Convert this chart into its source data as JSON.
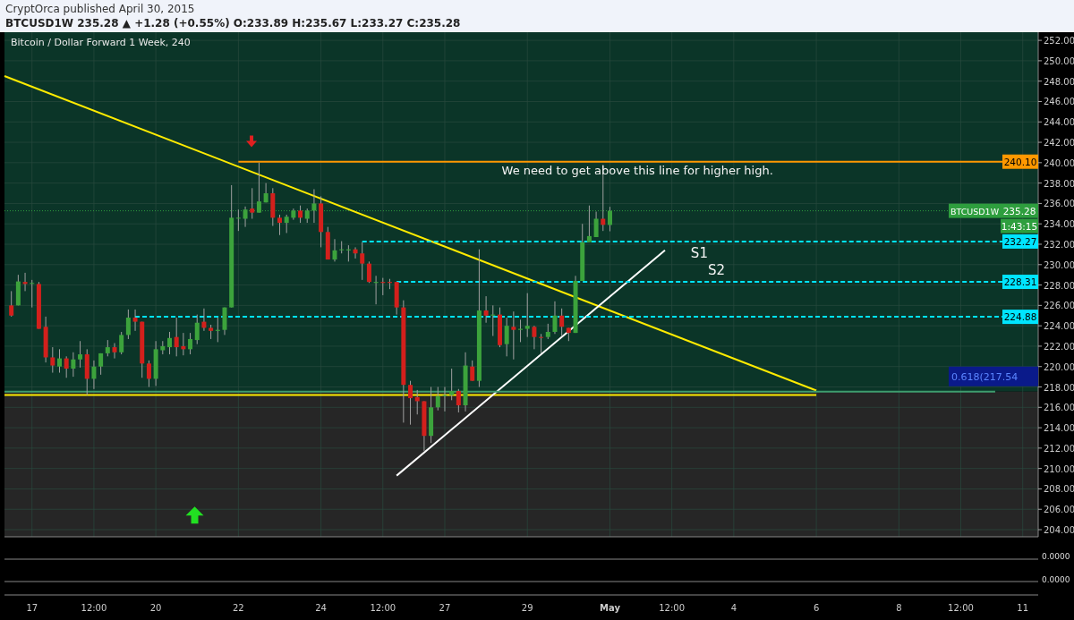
{
  "chart_data": {
    "type": "candlestick",
    "title": "Bitcoin / Dollar Forward 1 Week, 240",
    "subtitle": "BTCUSD1W 235.28 ▲ +1.28 (+0.55%) O:233.89 H:235.67 L:233.27 C:235.28",
    "x": [
      "2015-04-16T12:00",
      "2015-04-16T16:00",
      "2015-04-16T20:00",
      "2015-04-17T00:00",
      "2015-04-17T04:00",
      "2015-04-17T08:00",
      "2015-04-17T12:00",
      "2015-04-17T16:00",
      "2015-04-17T20:00",
      "2015-04-18T00:00",
      "2015-04-18T04:00",
      "2015-04-18T08:00",
      "2015-04-18T12:00",
      "2015-04-18T16:00",
      "2015-04-18T20:00",
      "2015-04-19T00:00",
      "2015-04-19T04:00",
      "2015-04-19T08:00",
      "2015-04-19T12:00",
      "2015-04-19T16:00",
      "2015-04-19T20:00",
      "2015-04-20T00:00",
      "2015-04-20T04:00",
      "2015-04-20T08:00",
      "2015-04-20T12:00",
      "2015-04-20T16:00",
      "2015-04-20T20:00",
      "2015-04-21T00:00",
      "2015-04-21T04:00",
      "2015-04-21T08:00",
      "2015-04-21T12:00",
      "2015-04-21T16:00",
      "2015-04-21T20:00",
      "2015-04-22T00:00",
      "2015-04-22T04:00",
      "2015-04-22T08:00",
      "2015-04-22T12:00",
      "2015-04-22T16:00",
      "2015-04-22T20:00",
      "2015-04-23T00:00",
      "2015-04-23T04:00",
      "2015-04-23T08:00",
      "2015-04-23T12:00",
      "2015-04-23T16:00",
      "2015-04-23T20:00",
      "2015-04-24T00:00",
      "2015-04-24T04:00",
      "2015-04-24T08:00",
      "2015-04-24T12:00",
      "2015-04-24T16:00",
      "2015-04-24T20:00",
      "2015-04-25T00:00",
      "2015-04-25T04:00",
      "2015-04-25T08:00",
      "2015-04-25T12:00",
      "2015-04-25T16:00",
      "2015-04-25T20:00",
      "2015-04-26T00:00",
      "2015-04-26T04:00",
      "2015-04-26T08:00",
      "2015-04-26T12:00",
      "2015-04-26T16:00",
      "2015-04-26T20:00",
      "2015-04-27T00:00",
      "2015-04-27T04:00",
      "2015-04-27T08:00",
      "2015-04-27T12:00",
      "2015-04-27T16:00",
      "2015-04-27T20:00",
      "2015-04-28T00:00",
      "2015-04-28T04:00",
      "2015-04-28T08:00",
      "2015-04-28T12:00",
      "2015-04-28T16:00",
      "2015-04-28T20:00",
      "2015-04-29T00:00",
      "2015-04-29T04:00",
      "2015-04-29T08:00",
      "2015-04-29T12:00",
      "2015-04-29T16:00",
      "2015-04-29T20:00",
      "2015-04-30T00:00",
      "2015-04-30T04:00",
      "2015-04-30T08:00",
      "2015-04-30T12:00",
      "2015-04-30T16:00",
      "2015-04-30T20:00",
      "2015-05-01T00:00"
    ],
    "ohlc": [
      [
        226.0,
        227.4,
        224.9,
        225.0
      ],
      [
        226.0,
        229.0,
        226.0,
        228.35
      ],
      [
        228.3,
        229.2,
        227.4,
        228.1
      ],
      [
        228.2,
        228.5,
        225.8,
        228.2
      ],
      [
        228.1,
        228.3,
        223.7,
        223.7
      ],
      [
        223.9,
        224.9,
        220.4,
        220.9
      ],
      [
        220.9,
        221.9,
        219.4,
        220.1
      ],
      [
        220.0,
        221.7,
        219.4,
        220.8
      ],
      [
        220.8,
        221.0,
        218.9,
        219.8
      ],
      [
        219.8,
        221.4,
        219.0,
        220.7
      ],
      [
        220.7,
        222.5,
        219.9,
        221.2
      ],
      [
        221.2,
        221.7,
        217.2,
        218.8
      ],
      [
        218.8,
        220.6,
        217.8,
        220.0
      ],
      [
        220.0,
        221.3,
        219.2,
        221.3
      ],
      [
        221.3,
        222.6,
        221.0,
        221.9
      ],
      [
        221.9,
        222.3,
        220.8,
        221.4
      ],
      [
        221.4,
        223.4,
        221.2,
        223.1
      ],
      [
        223.1,
        225.6,
        222.7,
        224.8
      ],
      [
        224.8,
        225.6,
        223.5,
        224.4
      ],
      [
        224.4,
        224.4,
        218.9,
        220.3
      ],
      [
        220.3,
        220.6,
        218.0,
        218.8
      ],
      [
        218.8,
        222.5,
        218.1,
        221.7
      ],
      [
        221.6,
        222.5,
        221.2,
        222.0
      ],
      [
        221.9,
        223.4,
        221.2,
        222.8
      ],
      [
        222.9,
        224.8,
        221.0,
        221.9
      ],
      [
        222.0,
        223.3,
        221.1,
        221.7
      ],
      [
        221.7,
        223.3,
        221.2,
        222.7
      ],
      [
        222.6,
        225.1,
        222.2,
        224.3
      ],
      [
        224.4,
        225.7,
        223.5,
        223.8
      ],
      [
        223.8,
        224.1,
        222.7,
        223.5
      ],
      [
        223.5,
        224.8,
        222.4,
        223.6
      ],
      [
        223.6,
        225.8,
        223.1,
        225.8
      ],
      [
        225.8,
        237.8,
        225.8,
        234.6
      ],
      [
        234.6,
        235.4,
        233.3,
        234.6
      ],
      [
        234.5,
        235.7,
        233.7,
        235.4
      ],
      [
        235.5,
        237.5,
        234.5,
        235.1
      ],
      [
        235.1,
        240.0,
        235.1,
        236.2
      ],
      [
        236.1,
        238.0,
        236.1,
        237.0
      ],
      [
        237.0,
        237.5,
        233.8,
        234.6
      ],
      [
        234.6,
        234.9,
        232.9,
        234.1
      ],
      [
        234.1,
        234.9,
        233.1,
        234.7
      ],
      [
        234.6,
        235.5,
        234.4,
        235.3
      ],
      [
        235.3,
        235.8,
        234.1,
        234.6
      ],
      [
        234.5,
        235.5,
        234.1,
        235.3
      ],
      [
        235.3,
        237.4,
        234.1,
        236.0
      ],
      [
        236.0,
        236.7,
        231.7,
        233.2
      ],
      [
        233.2,
        233.7,
        230.5,
        230.5
      ],
      [
        230.5,
        232.5,
        230.3,
        231.4
      ],
      [
        231.5,
        232.3,
        231.1,
        231.5
      ],
      [
        231.4,
        231.9,
        230.3,
        231.5
      ],
      [
        231.5,
        231.7,
        230.6,
        231.1
      ],
      [
        231.1,
        232.2,
        228.5,
        230.1
      ],
      [
        230.1,
        230.3,
        228.2,
        228.3
      ],
      [
        228.2,
        228.9,
        226.1,
        228.3
      ],
      [
        228.3,
        228.7,
        227.0,
        228.2
      ],
      [
        228.3,
        228.6,
        227.6,
        228.2
      ],
      [
        228.3,
        228.3,
        225.1,
        225.8
      ],
      [
        225.8,
        226.5,
        214.5,
        218.2
      ],
      [
        218.2,
        218.6,
        214.3,
        216.9
      ],
      [
        217.0,
        217.7,
        215.3,
        216.6
      ],
      [
        216.6,
        216.6,
        211.7,
        213.2
      ],
      [
        213.2,
        218.0,
        212.5,
        216.0
      ],
      [
        216.0,
        218.0,
        215.7,
        217.1
      ],
      [
        217.1,
        218.0,
        215.6,
        217.2
      ],
      [
        217.2,
        219.8,
        216.7,
        217.6
      ],
      [
        217.6,
        217.8,
        215.5,
        216.2
      ],
      [
        216.2,
        221.4,
        215.6,
        220.1
      ],
      [
        220.0,
        220.6,
        218.6,
        218.6
      ],
      [
        218.6,
        231.5,
        218.0,
        225.5
      ],
      [
        225.5,
        226.9,
        224.3,
        225.0
      ],
      [
        225.0,
        226.0,
        223.0,
        225.1
      ],
      [
        225.1,
        225.8,
        221.9,
        222.1
      ],
      [
        222.2,
        224.8,
        221.0,
        224.0
      ],
      [
        223.9,
        225.4,
        220.7,
        223.6
      ],
      [
        223.6,
        224.6,
        222.4,
        223.7
      ],
      [
        223.7,
        227.2,
        222.9,
        224.0
      ],
      [
        223.9,
        224.0,
        221.7,
        222.9
      ],
      [
        222.9,
        223.2,
        221.3,
        222.9
      ],
      [
        222.9,
        224.2,
        222.7,
        223.4
      ],
      [
        223.4,
        226.4,
        223.2,
        225.0
      ],
      [
        225.0,
        225.7,
        223.0,
        223.9
      ],
      [
        223.8,
        223.8,
        222.5,
        223.3
      ],
      [
        223.3,
        228.9,
        223.3,
        228.4
      ],
      [
        228.4,
        234.0,
        228.4,
        232.2
      ],
      [
        232.2,
        235.8,
        232.2,
        232.8
      ],
      [
        232.7,
        235.2,
        232.7,
        234.5
      ],
      [
        234.5,
        239.8,
        233.3,
        233.9
      ],
      [
        233.89,
        235.67,
        233.27,
        235.28
      ]
    ],
    "colors": [
      "#d3201c",
      "#3ca33c",
      "#d3201c",
      "#3ca33c",
      "#d3201c",
      "#d3201c",
      "#d3201c",
      "#3ca33c",
      "#d3201c",
      "#3ca33c",
      "#3ca33c",
      "#d3201c",
      "#3ca33c",
      "#3ca33c",
      "#3ca33c",
      "#d3201c",
      "#3ca33c",
      "#3ca33c",
      "#d3201c",
      "#d3201c",
      "#d3201c",
      "#3ca33c",
      "#3ca33c",
      "#3ca33c",
      "#d3201c",
      "#d3201c",
      "#3ca33c",
      "#3ca33c",
      "#d3201c",
      "#d3201c",
      "#3ca33c",
      "#3ca33c",
      "#3ca33c",
      "#3ca33c",
      "#3ca33c",
      "#d3201c",
      "#3ca33c",
      "#3ca33c",
      "#d3201c",
      "#d3201c",
      "#3ca33c",
      "#3ca33c",
      "#d3201c",
      "#3ca33c",
      "#3ca33c",
      "#d3201c",
      "#d3201c",
      "#3ca33c",
      "#3ca33c",
      "#3ca33c",
      "#d3201c",
      "#d3201c",
      "#d3201c",
      "#3ca33c",
      "#d3201c",
      "#d3201c",
      "#d3201c",
      "#d3201c",
      "#d3201c",
      "#d3201c",
      "#d3201c",
      "#3ca33c",
      "#3ca33c",
      "#3ca33c",
      "#3ca33c",
      "#d3201c",
      "#3ca33c",
      "#d3201c",
      "#3ca33c",
      "#d3201c",
      "#3ca33c",
      "#d3201c",
      "#3ca33c",
      "#d3201c",
      "#3ca33c",
      "#3ca33c",
      "#d3201c",
      "#d3201c",
      "#3ca33c",
      "#3ca33c",
      "#d3201c",
      "#d3201c",
      "#3ca33c",
      "#3ca33c",
      "#3ca33c",
      "#3ca33c",
      "#d3201c",
      "#3ca33c"
    ],
    "series": [
      {
        "type": "line",
        "color": "#ffeb00",
        "x": [
          "2015-04-16T08:00",
          "2015-05-06T00:00"
        ],
        "values": [
          248.5,
          217.65
        ]
      },
      {
        "type": "line",
        "color": "#ffeb00",
        "x": [
          "2015-04-16T08:00",
          "2015-05-06T00:00"
        ],
        "values": [
          217.2,
          217.2
        ]
      },
      {
        "type": "line",
        "color": "#ffffff",
        "x": [
          "2015-04-25T20:00",
          "2015-05-02T08:00"
        ],
        "values": [
          209.3,
          231.4
        ]
      },
      {
        "type": "line",
        "color": "#ff9800",
        "x": [
          "2015-04-22T00:00",
          "2015-05-11T09:00"
        ],
        "values": [
          240.1,
          240.1
        ],
        "value_labels": [
          null,
          "240.10"
        ]
      },
      {
        "type": "line",
        "color": "#00e5ff",
        "line_style": "dashed",
        "x": [
          "2015-04-25T00:00",
          "2015-05-11T09:00"
        ],
        "values": [
          232.27,
          232.27
        ],
        "value_labels": [
          null,
          "232.27"
        ]
      },
      {
        "type": "line",
        "color": "#00e5ff",
        "line_style": "dashed",
        "x": [
          "2015-04-25T20:00",
          "2015-05-11T09:00"
        ],
        "values": [
          228.31,
          228.31
        ],
        "value_labels": [
          null,
          "228.31"
        ]
      },
      {
        "type": "line",
        "color": "#00e5ff",
        "line_style": "dashed",
        "x": [
          "2015-04-19T12:00",
          "2015-05-11T09:00"
        ],
        "values": [
          224.88,
          224.88
        ],
        "value_labels": [
          null,
          "224.88"
        ]
      },
      {
        "type": "line",
        "color": "#3e9c6e",
        "x": [
          "2015-04-16T08:00",
          "2015-05-10T08:00"
        ],
        "values": [
          217.54,
          217.54
        ]
      }
    ],
    "ref_lines": [
      {
        "axis": "y",
        "value": 235.28,
        "label": "235.28",
        "color": "#2e9e3e",
        "line_style": "dotted"
      }
    ],
    "bands": [
      {
        "axis": "y",
        "from": 217.54,
        "to": 252.8,
        "color": "#0b3528"
      },
      {
        "axis": "y",
        "from": 203.3,
        "to": 217.54,
        "color": "#262626"
      }
    ],
    "annotations": [
      "CryptOrca published April 30, 2015",
      "We need to get above this line for higher high.",
      "S1",
      "S2",
      "BTCUSD1W",
      "1:43:15",
      "0.618(217.54",
      "0.0000",
      "0.0000"
    ],
    "xlim": [
      "2015-04-16T08:00",
      "2015-05-11T09:00"
    ],
    "xticks": [
      {
        "value": "2015-04-17",
        "label": "17"
      },
      {
        "value": "2015-04-18T12:00",
        "label": "12:00"
      },
      {
        "value": "2015-04-20",
        "label": "20"
      },
      {
        "value": "2015-04-22",
        "label": "22"
      },
      {
        "value": "2015-04-24",
        "label": "24"
      },
      {
        "value": "2015-04-25T12:00",
        "label": "12:00"
      },
      {
        "value": "2015-04-27",
        "label": "27"
      },
      {
        "value": "2015-04-29",
        "label": "29"
      },
      {
        "value": "2015-05-01",
        "label": "May"
      },
      {
        "value": "2015-05-02T12:00",
        "label": "12:00"
      },
      {
        "value": "2015-05-04",
        "label": "4"
      },
      {
        "value": "2015-05-06",
        "label": "6"
      },
      {
        "value": "2015-05-08",
        "label": "8"
      },
      {
        "value": "2015-05-09T12:00",
        "label": "12:00"
      },
      {
        "value": "2015-05-11",
        "label": "11"
      }
    ],
    "ylim": [
      203.3,
      252.8
    ],
    "yticks": [
      {
        "value": 204,
        "label": "204.00"
      },
      {
        "value": 206,
        "label": "206.00"
      },
      {
        "value": 208,
        "label": "208.00"
      },
      {
        "value": 210,
        "label": "210.00"
      },
      {
        "value": 212,
        "label": "212.00"
      },
      {
        "value": 214,
        "label": "214.00"
      },
      {
        "value": 216,
        "label": "216.00"
      },
      {
        "value": 218,
        "label": "218.00"
      },
      {
        "value": 220,
        "label": "220.00"
      },
      {
        "value": 222,
        "label": "222.00"
      },
      {
        "value": 224,
        "label": "224.00"
      },
      {
        "value": 226,
        "label": "226.00"
      },
      {
        "value": 228,
        "label": "228.00"
      },
      {
        "value": 230,
        "label": "230.00"
      },
      {
        "value": 232,
        "label": "232.00"
      },
      {
        "value": 234,
        "label": "234.00"
      },
      {
        "value": 236,
        "label": "236.00"
      },
      {
        "value": 238,
        "label": "238.00"
      },
      {
        "value": 240,
        "label": "240.00"
      },
      {
        "value": 242,
        "label": "242.00"
      },
      {
        "value": 244,
        "label": "244.00"
      },
      {
        "value": 246,
        "label": "246.00"
      },
      {
        "value": 248,
        "label": "248.00"
      },
      {
        "value": 250,
        "label": "250.00"
      },
      {
        "value": 252,
        "label": "252.00"
      }
    ],
    "grid": true
  }
}
